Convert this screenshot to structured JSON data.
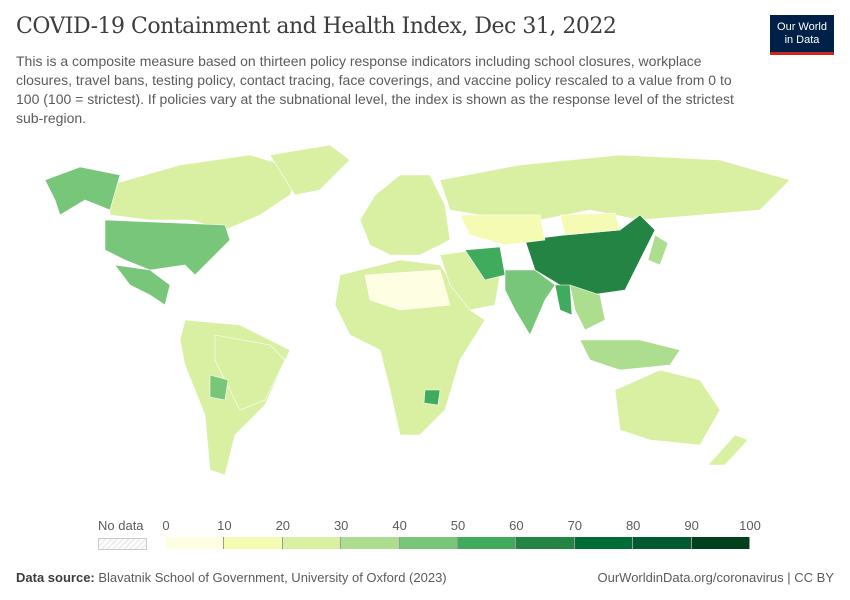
{
  "header": {
    "title": "COVID-19 Containment and Health Index, Dec 31, 2022",
    "subtitle": "This is a composite measure based on thirteen policy response indicators including school closures, workplace closures, travel bans, testing policy, contact tracing, face coverings, and vaccine policy rescaled to a value from 0 to 100 (100 = strictest). If policies vary at the subnational level, the index is shown as the response level of the strictest sub-region.",
    "logo_line1": "Our World",
    "logo_line2": "in Data"
  },
  "legend": {
    "no_data_label": "No data",
    "ticks": [
      "0",
      "10",
      "20",
      "30",
      "40",
      "50",
      "60",
      "70",
      "80",
      "90",
      "100"
    ],
    "colors": [
      "#fefee3",
      "#f6fbb4",
      "#d9f0a3",
      "#addd8e",
      "#78c679",
      "#41ab5d",
      "#238443",
      "#006d38",
      "#005a32",
      "#00401c"
    ]
  },
  "map_regions": [
    {
      "name": "Canada",
      "bin": 2
    },
    {
      "name": "Alaska",
      "bin": 4
    },
    {
      "name": "United States",
      "bin": 4
    },
    {
      "name": "Mexico",
      "bin": 4
    },
    {
      "name": "Greenland",
      "bin": 2
    },
    {
      "name": "South America",
      "bin": 2
    },
    {
      "name": "Brazil",
      "bin": 2
    },
    {
      "name": "Bolivia",
      "bin": 4
    },
    {
      "name": "Europe",
      "bin": 2
    },
    {
      "name": "Russia",
      "bin": 2
    },
    {
      "name": "Africa",
      "bin": 2
    },
    {
      "name": "Sahara",
      "bin": 0
    },
    {
      "name": "Middle East",
      "bin": 2
    },
    {
      "name": "Iran",
      "bin": 5
    },
    {
      "name": "India",
      "bin": 4
    },
    {
      "name": "China",
      "bin": 6
    },
    {
      "name": "Mongolia",
      "bin": 1
    },
    {
      "name": "Kazakhstan",
      "bin": 1
    },
    {
      "name": "Southeast Asia",
      "bin": 3
    },
    {
      "name": "Myanmar",
      "bin": 5
    },
    {
      "name": "Australia",
      "bin": 2
    },
    {
      "name": "Indonesia",
      "bin": 3
    },
    {
      "name": "Japan",
      "bin": 3
    },
    {
      "name": "New Zealand",
      "bin": 2
    },
    {
      "name": "Zimbabwe",
      "bin": 5
    }
  ],
  "footer": {
    "source_label": "Data source:",
    "source": "Blavatnik School of Government, University of Oxford (2023)",
    "link": "OurWorldinData.org/coronavirus | CC BY"
  }
}
